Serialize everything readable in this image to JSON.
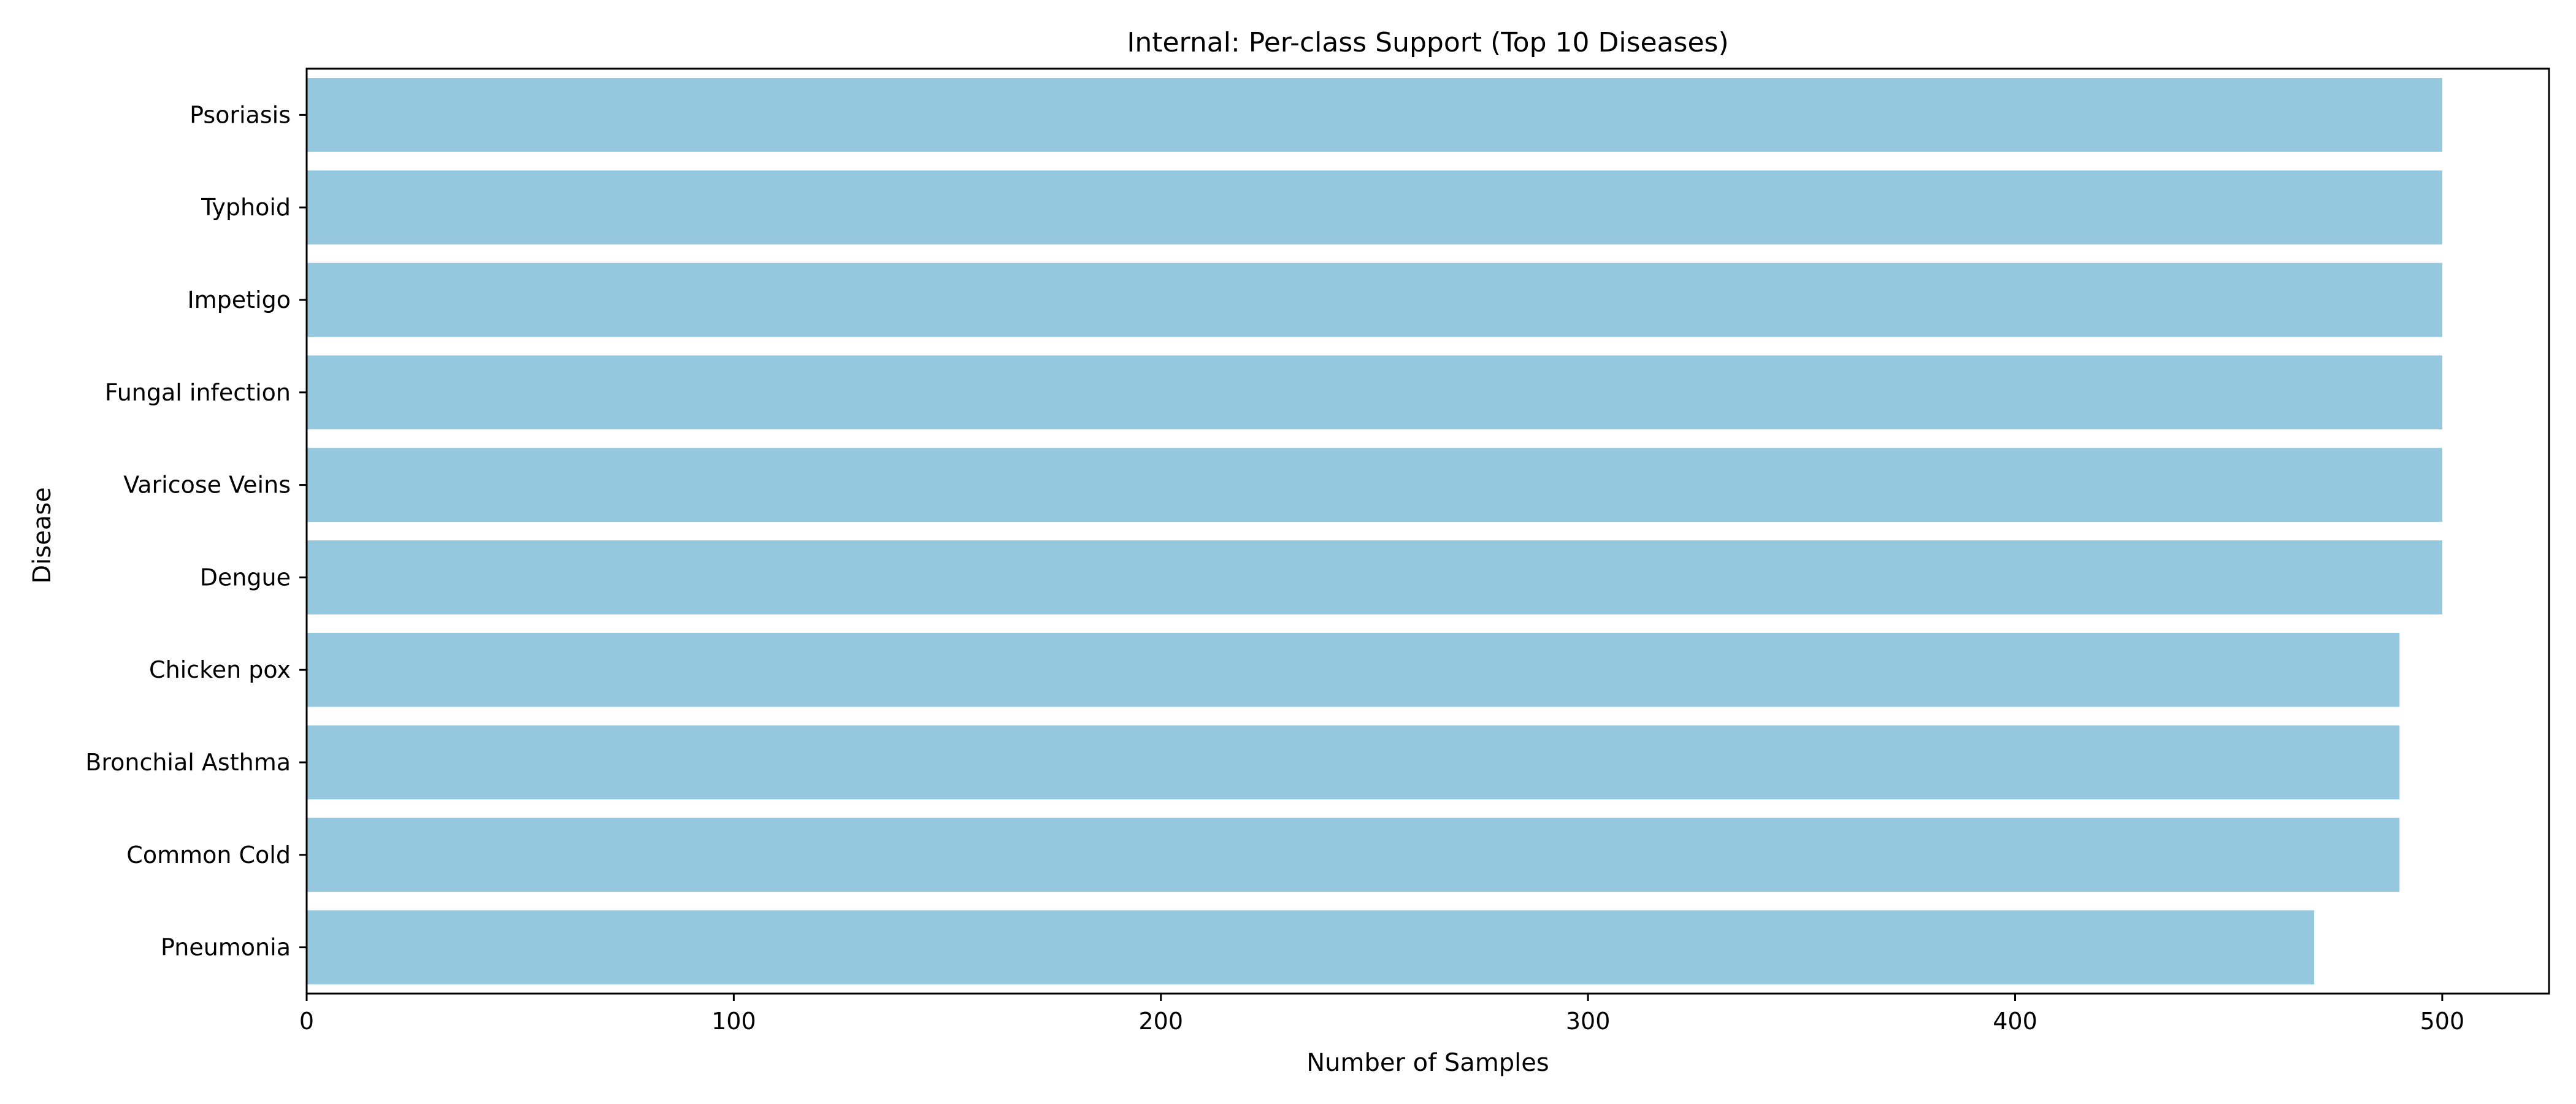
{
  "chart_data": {
    "type": "bar",
    "orientation": "horizontal",
    "title": "Internal: Per-class Support (Top 10 Diseases)",
    "xlabel": "Number of Samples",
    "ylabel": "Disease",
    "categories": [
      "Psoriasis",
      "Typhoid",
      "Impetigo",
      "Fungal infection",
      "Varicose Veins",
      "Dengue",
      "Chicken pox",
      "Bronchial Asthma",
      "Common Cold",
      "Pneumonia"
    ],
    "values": [
      500,
      500,
      500,
      500,
      500,
      500,
      490,
      490,
      490,
      470
    ],
    "xlim": [
      0,
      525
    ],
    "xticks": [
      0,
      100,
      200,
      300,
      400,
      500
    ],
    "grid": false,
    "bar_color": "#95c8de"
  }
}
